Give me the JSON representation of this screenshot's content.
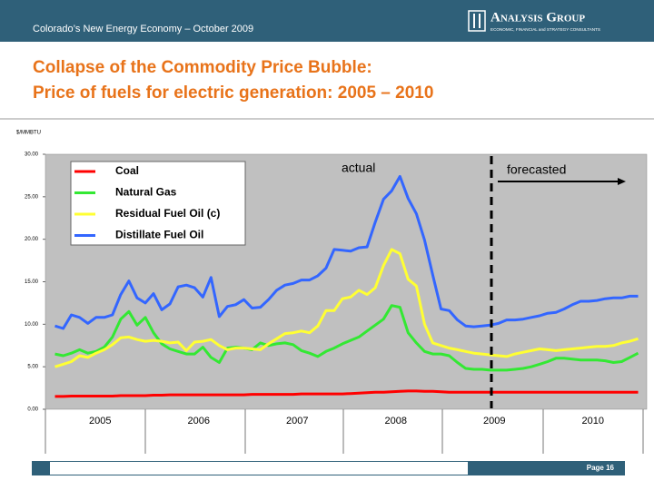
{
  "header": {
    "text": "Colorado’s New Energy Economy – October 2009",
    "logo": "Analysis Group",
    "logo_tagline": "ECONOMIC, FINANCIAL and STRATEGY CONSULTANTS"
  },
  "title": [
    "Collapse of the Commodity Price Bubble:",
    "Price of fuels for electric generation: 2005 – 2010"
  ],
  "chart_data": {
    "type": "line",
    "y_label": "$/MMBTU",
    "categories": [
      "2005",
      "2006",
      "2007",
      "2008",
      "2009",
      "2010"
    ],
    "ylim": [
      0,
      30
    ],
    "yticks": [
      {
        "value": 0,
        "label": "0.00"
      },
      {
        "value": 5,
        "label": "5.00"
      },
      {
        "value": 10,
        "label": "10.00"
      },
      {
        "value": 15,
        "label": "15.00"
      },
      {
        "value": 20,
        "label": "20.00"
      },
      {
        "value": 25,
        "label": "25.00"
      },
      {
        "value": 30,
        "label": "30.00"
      }
    ],
    "annotations": [
      "actual",
      "forecasted"
    ],
    "series": [
      {
        "name": "Coal",
        "color": "#ff0000",
        "values": [
          [
            1.5,
            1.5,
            1.55,
            1.55,
            1.55,
            1.55,
            1.55,
            1.55,
            1.6,
            1.6,
            1.6,
            1.6
          ],
          [
            1.65,
            1.65,
            1.7,
            1.7,
            1.7,
            1.7,
            1.7,
            1.7,
            1.7,
            1.7,
            1.7,
            1.7
          ],
          [
            1.75,
            1.75,
            1.75,
            1.75,
            1.75,
            1.75,
            1.8,
            1.8,
            1.8,
            1.8,
            1.8,
            1.8
          ],
          [
            1.85,
            1.9,
            1.95,
            2.0,
            2.0,
            2.05,
            2.1,
            2.15,
            2.15,
            2.1,
            2.1,
            2.05
          ],
          [
            2.0,
            2.0,
            2.0,
            2.0,
            2.0,
            2.0,
            2.0,
            2.0,
            2.0,
            2.0,
            2.0,
            2.0
          ],
          [
            2.0,
            2.0,
            2.0,
            2.0,
            2.0,
            2.0,
            2.0,
            2.0,
            2.0,
            2.0,
            2.0,
            2.0
          ]
        ]
      },
      {
        "name": "Natural Gas",
        "color": "#33e833",
        "values": [
          [
            6.5,
            6.3,
            6.6,
            7.0,
            6.6,
            6.8,
            7.3,
            8.5,
            10.6,
            11.5,
            9.9,
            10.8
          ],
          [
            9.0,
            7.7,
            7.1,
            6.8,
            6.5,
            6.5,
            7.3,
            6.1,
            5.5,
            7.2,
            7.3,
            7.2
          ],
          [
            7.0,
            7.8,
            7.5,
            7.7,
            7.8,
            7.6,
            6.9,
            6.6,
            6.2,
            6.8,
            7.2,
            7.7
          ],
          [
            8.1,
            8.5,
            9.2,
            9.9,
            10.6,
            12.2,
            12.0,
            9.0,
            7.8,
            6.8,
            6.5,
            6.5
          ],
          [
            6.3,
            5.5,
            4.8,
            4.7,
            4.7,
            4.6,
            4.6,
            4.6,
            4.7,
            4.8,
            5.0,
            5.3
          ],
          [
            5.6,
            6.0,
            6.0,
            5.9,
            5.8,
            5.8,
            5.8,
            5.7,
            5.5,
            5.6,
            6.1,
            6.6
          ]
        ]
      },
      {
        "name": "Residual Fuel Oil (c)",
        "color": "#ffff33",
        "values": [
          [
            5.0,
            5.3,
            5.6,
            6.3,
            6.1,
            6.6,
            7.0,
            7.6,
            8.4,
            8.5,
            8.2,
            8.0
          ],
          [
            8.1,
            8.0,
            7.8,
            7.9,
            6.9,
            7.9,
            8.0,
            8.2,
            7.5,
            7.0,
            7.2,
            7.2
          ],
          [
            7.1,
            7.0,
            7.7,
            8.3,
            8.9,
            9.0,
            9.2,
            9.0,
            9.8,
            11.6,
            11.6,
            13.0
          ],
          [
            13.2,
            14.0,
            13.5,
            14.3,
            16.9,
            18.8,
            18.3,
            15.3,
            14.5,
            10.0,
            7.8,
            7.5
          ],
          [
            7.2,
            7.0,
            6.8,
            6.6,
            6.5,
            6.4,
            6.3,
            6.2,
            6.5,
            6.7,
            6.9,
            7.1
          ],
          [
            7.0,
            6.9,
            7.0,
            7.1,
            7.2,
            7.3,
            7.4,
            7.4,
            7.5,
            7.8,
            8.0,
            8.3
          ]
        ]
      },
      {
        "name": "Distillate Fuel Oil",
        "color": "#3366ff",
        "values": [
          [
            9.8,
            9.5,
            11.1,
            10.8,
            10.1,
            10.8,
            10.8,
            11.1,
            13.5,
            15.1,
            13.1,
            12.5
          ],
          [
            13.6,
            11.7,
            12.4,
            14.4,
            14.6,
            14.3,
            13.2,
            15.5,
            10.9,
            12.1,
            12.3,
            12.9
          ],
          [
            11.9,
            12.0,
            12.9,
            14.0,
            14.6,
            14.8,
            15.2,
            15.2,
            15.7,
            16.6,
            18.8,
            18.7
          ],
          [
            18.6,
            19.0,
            19.1,
            22.0,
            24.7,
            25.7,
            27.4,
            24.8,
            23.0,
            19.9,
            15.8,
            11.8
          ],
          [
            11.6,
            10.5,
            9.8,
            9.7,
            9.8,
            9.9,
            10.1,
            10.5,
            10.5,
            10.6,
            10.8,
            11.0
          ],
          [
            11.3,
            11.4,
            11.8,
            12.3,
            12.7,
            12.7,
            12.8,
            13.0,
            13.1,
            13.1,
            13.3,
            13.3
          ]
        ]
      }
    ]
  },
  "footer": {
    "page": "Page 16"
  }
}
